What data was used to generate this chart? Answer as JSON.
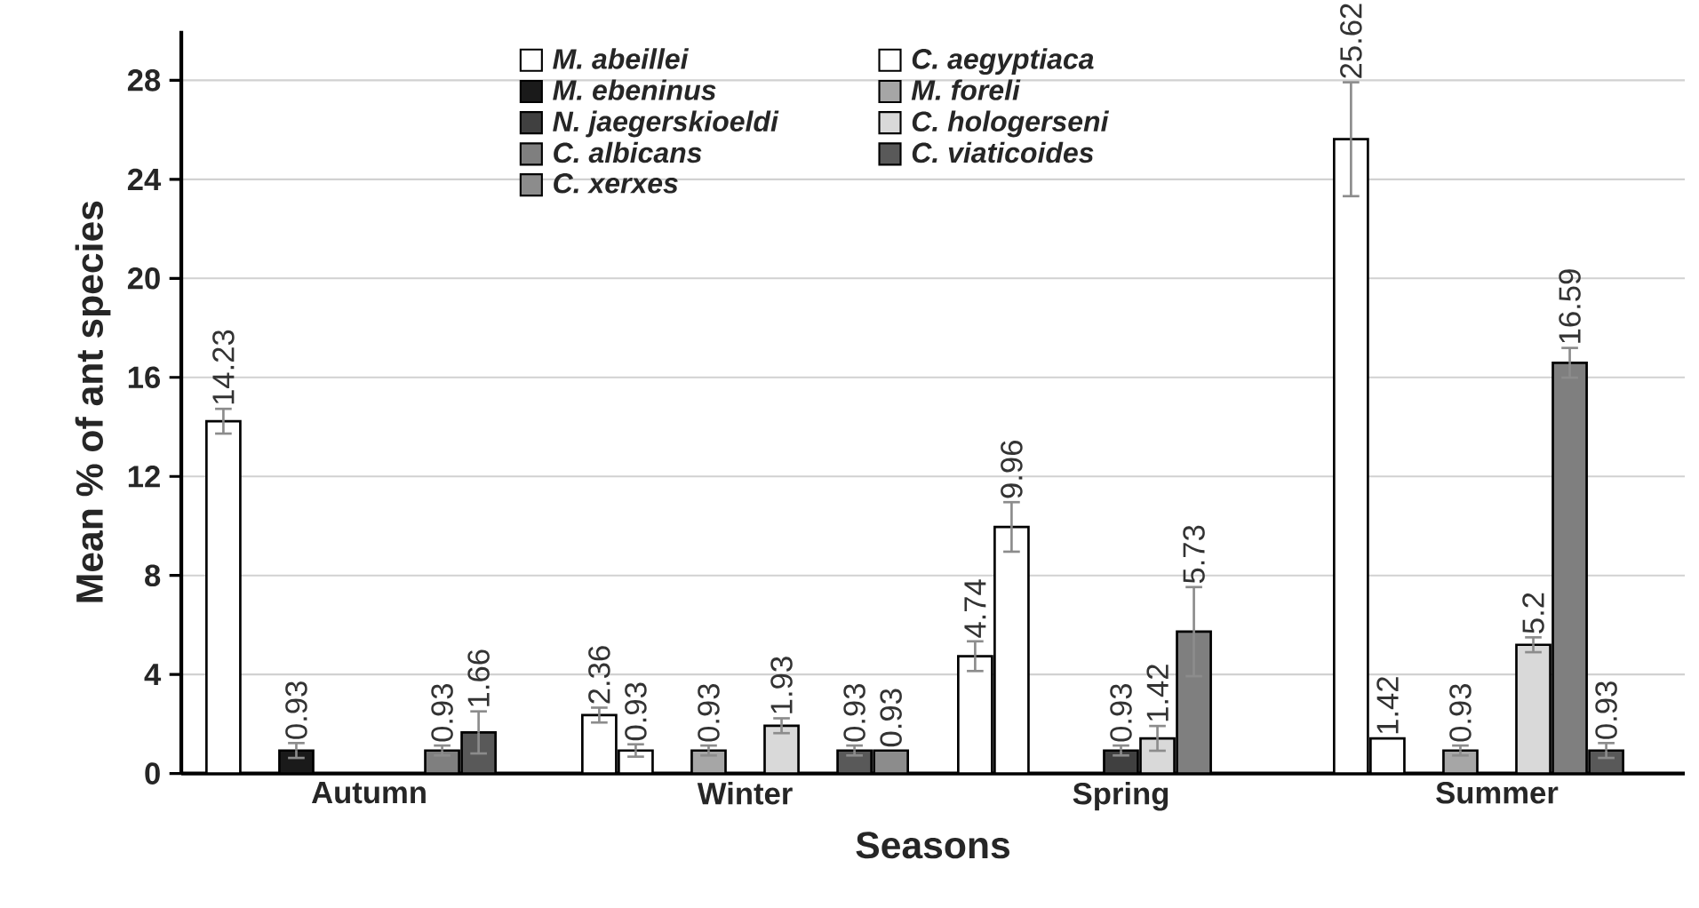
{
  "chart_data": {
    "type": "bar",
    "xlabel": "Seasons",
    "ylabel": "Mean % of ant species",
    "categories": [
      "Autumn",
      "Winter",
      "Spring",
      "Summer"
    ],
    "ylim": [
      0,
      30
    ],
    "yticks": [
      0,
      4,
      8,
      12,
      16,
      20,
      24,
      28
    ],
    "grid": "y",
    "legend": "top",
    "data_labels": true,
    "series": [
      {
        "name": "*M. abeillei*",
        "color": "#ffffff",
        "values": [
          14.23,
          2.36,
          4.74,
          25.62
        ],
        "errors": [
          0.5,
          0.3,
          0.6,
          2.3
        ]
      },
      {
        "name": "*C. aegyptiaca*",
        "color": "#ffffff",
        "values": [
          null,
          0.93,
          9.96,
          1.42
        ],
        "errors": [
          null,
          0.25,
          1.0,
          null
        ]
      },
      {
        "name": "*M. ebeninus*",
        "color": "#1a1a1a",
        "values": [
          0.93,
          null,
          null,
          null
        ],
        "errors": [
          0.3,
          null,
          null,
          null
        ]
      },
      {
        "name": "*M. foreli*",
        "color": "#a6a6a6",
        "values": [
          null,
          0.93,
          null,
          0.93
        ],
        "errors": [
          null,
          0.2,
          null,
          0.2
        ]
      },
      {
        "name": "*N. jaegerskioeldi*",
        "color": "#404040",
        "values": [
          null,
          null,
          0.93,
          null
        ],
        "errors": [
          null,
          null,
          0.2,
          null
        ]
      },
      {
        "name": "*C. hologerseni*",
        "color": "#d9d9d9",
        "values": [
          null,
          1.93,
          1.42,
          5.2
        ],
        "errors": [
          null,
          0.3,
          0.5,
          0.3
        ]
      },
      {
        "name": "*C. albicans*",
        "color": "#7f7f7f",
        "values": [
          0.93,
          null,
          5.73,
          16.59
        ],
        "errors": [
          0.2,
          null,
          1.8,
          0.6
        ]
      },
      {
        "name": "*C. viaticoides*",
        "color": "#595959",
        "values": [
          1.66,
          0.93,
          null,
          0.93
        ],
        "errors": [
          0.85,
          0.2,
          null,
          0.3
        ]
      },
      {
        "name": "*C. xerxes*",
        "color": "#8c8c8c",
        "values": [
          null,
          0.93,
          null,
          null
        ],
        "errors": [
          null,
          null,
          null,
          null
        ]
      }
    ]
  }
}
